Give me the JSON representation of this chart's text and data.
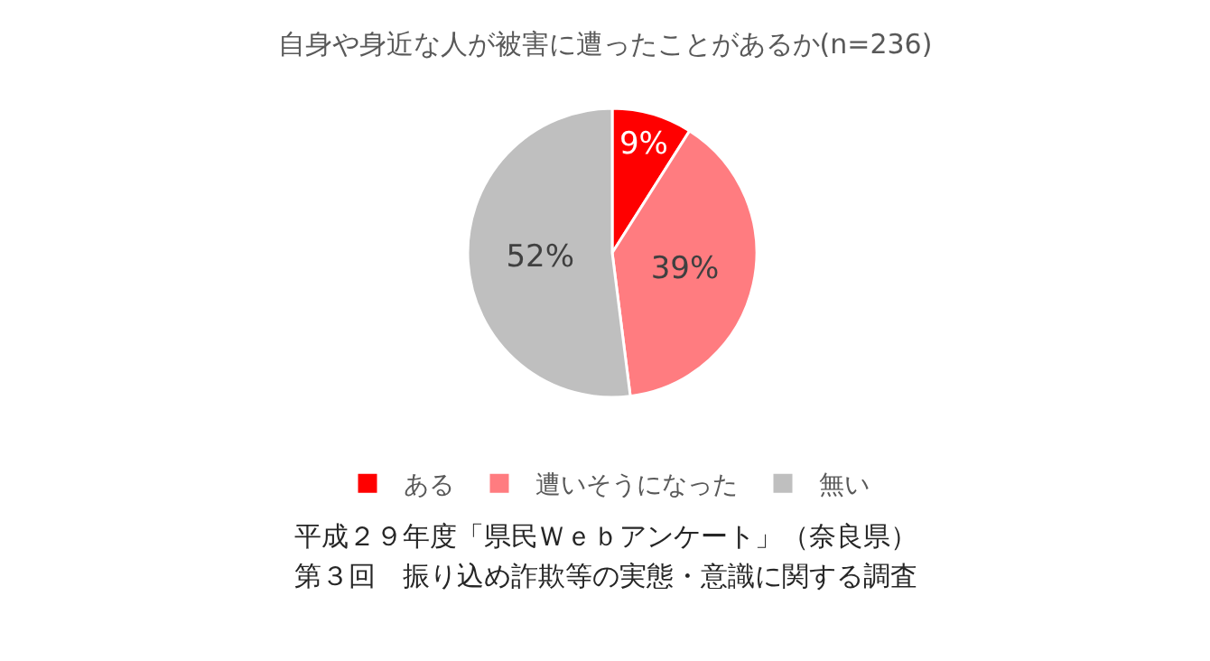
{
  "chart_data": {
    "type": "pie",
    "title": "自身や身近な人が被害に遭ったことがあるか(n=236)",
    "categories": [
      "ある",
      "遭いそうになった",
      "無い"
    ],
    "values": [
      9,
      39,
      52
    ],
    "value_labels": [
      "9%",
      "39%",
      "52%"
    ],
    "colors": [
      "#ff0000",
      "#ff7c80",
      "#bfbfbf"
    ],
    "legend": "bottom",
    "annotations": [
      "平成２９年度「県民Ｗｅｂアンケート」（奈良県）",
      "第３回　振り込め詐欺等の実態・意識に関する調査"
    ]
  }
}
